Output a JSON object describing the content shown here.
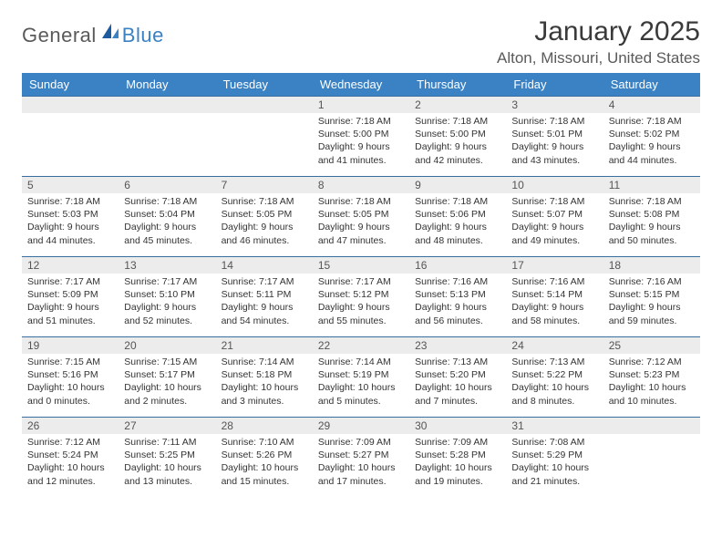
{
  "logo": {
    "general": "General",
    "blue": "Blue"
  },
  "title": "January 2025",
  "location": "Alton, Missouri, United States",
  "colors": {
    "header_bg": "#3b82c4",
    "header_text": "#ffffff",
    "row_divider": "#3b6ea0",
    "daynum_bg": "#ececec",
    "body_text": "#333333",
    "page_bg": "#ffffff"
  },
  "day_headers": [
    "Sunday",
    "Monday",
    "Tuesday",
    "Wednesday",
    "Thursday",
    "Friday",
    "Saturday"
  ],
  "weeks": [
    [
      {
        "n": "",
        "sr": "",
        "ss": "",
        "dl": ""
      },
      {
        "n": "",
        "sr": "",
        "ss": "",
        "dl": ""
      },
      {
        "n": "",
        "sr": "",
        "ss": "",
        "dl": ""
      },
      {
        "n": "1",
        "sr": "Sunrise: 7:18 AM",
        "ss": "Sunset: 5:00 PM",
        "dl": "Daylight: 9 hours and 41 minutes."
      },
      {
        "n": "2",
        "sr": "Sunrise: 7:18 AM",
        "ss": "Sunset: 5:00 PM",
        "dl": "Daylight: 9 hours and 42 minutes."
      },
      {
        "n": "3",
        "sr": "Sunrise: 7:18 AM",
        "ss": "Sunset: 5:01 PM",
        "dl": "Daylight: 9 hours and 43 minutes."
      },
      {
        "n": "4",
        "sr": "Sunrise: 7:18 AM",
        "ss": "Sunset: 5:02 PM",
        "dl": "Daylight: 9 hours and 44 minutes."
      }
    ],
    [
      {
        "n": "5",
        "sr": "Sunrise: 7:18 AM",
        "ss": "Sunset: 5:03 PM",
        "dl": "Daylight: 9 hours and 44 minutes."
      },
      {
        "n": "6",
        "sr": "Sunrise: 7:18 AM",
        "ss": "Sunset: 5:04 PM",
        "dl": "Daylight: 9 hours and 45 minutes."
      },
      {
        "n": "7",
        "sr": "Sunrise: 7:18 AM",
        "ss": "Sunset: 5:05 PM",
        "dl": "Daylight: 9 hours and 46 minutes."
      },
      {
        "n": "8",
        "sr": "Sunrise: 7:18 AM",
        "ss": "Sunset: 5:05 PM",
        "dl": "Daylight: 9 hours and 47 minutes."
      },
      {
        "n": "9",
        "sr": "Sunrise: 7:18 AM",
        "ss": "Sunset: 5:06 PM",
        "dl": "Daylight: 9 hours and 48 minutes."
      },
      {
        "n": "10",
        "sr": "Sunrise: 7:18 AM",
        "ss": "Sunset: 5:07 PM",
        "dl": "Daylight: 9 hours and 49 minutes."
      },
      {
        "n": "11",
        "sr": "Sunrise: 7:18 AM",
        "ss": "Sunset: 5:08 PM",
        "dl": "Daylight: 9 hours and 50 minutes."
      }
    ],
    [
      {
        "n": "12",
        "sr": "Sunrise: 7:17 AM",
        "ss": "Sunset: 5:09 PM",
        "dl": "Daylight: 9 hours and 51 minutes."
      },
      {
        "n": "13",
        "sr": "Sunrise: 7:17 AM",
        "ss": "Sunset: 5:10 PM",
        "dl": "Daylight: 9 hours and 52 minutes."
      },
      {
        "n": "14",
        "sr": "Sunrise: 7:17 AM",
        "ss": "Sunset: 5:11 PM",
        "dl": "Daylight: 9 hours and 54 minutes."
      },
      {
        "n": "15",
        "sr": "Sunrise: 7:17 AM",
        "ss": "Sunset: 5:12 PM",
        "dl": "Daylight: 9 hours and 55 minutes."
      },
      {
        "n": "16",
        "sr": "Sunrise: 7:16 AM",
        "ss": "Sunset: 5:13 PM",
        "dl": "Daylight: 9 hours and 56 minutes."
      },
      {
        "n": "17",
        "sr": "Sunrise: 7:16 AM",
        "ss": "Sunset: 5:14 PM",
        "dl": "Daylight: 9 hours and 58 minutes."
      },
      {
        "n": "18",
        "sr": "Sunrise: 7:16 AM",
        "ss": "Sunset: 5:15 PM",
        "dl": "Daylight: 9 hours and 59 minutes."
      }
    ],
    [
      {
        "n": "19",
        "sr": "Sunrise: 7:15 AM",
        "ss": "Sunset: 5:16 PM",
        "dl": "Daylight: 10 hours and 0 minutes."
      },
      {
        "n": "20",
        "sr": "Sunrise: 7:15 AM",
        "ss": "Sunset: 5:17 PM",
        "dl": "Daylight: 10 hours and 2 minutes."
      },
      {
        "n": "21",
        "sr": "Sunrise: 7:14 AM",
        "ss": "Sunset: 5:18 PM",
        "dl": "Daylight: 10 hours and 3 minutes."
      },
      {
        "n": "22",
        "sr": "Sunrise: 7:14 AM",
        "ss": "Sunset: 5:19 PM",
        "dl": "Daylight: 10 hours and 5 minutes."
      },
      {
        "n": "23",
        "sr": "Sunrise: 7:13 AM",
        "ss": "Sunset: 5:20 PM",
        "dl": "Daylight: 10 hours and 7 minutes."
      },
      {
        "n": "24",
        "sr": "Sunrise: 7:13 AM",
        "ss": "Sunset: 5:22 PM",
        "dl": "Daylight: 10 hours and 8 minutes."
      },
      {
        "n": "25",
        "sr": "Sunrise: 7:12 AM",
        "ss": "Sunset: 5:23 PM",
        "dl": "Daylight: 10 hours and 10 minutes."
      }
    ],
    [
      {
        "n": "26",
        "sr": "Sunrise: 7:12 AM",
        "ss": "Sunset: 5:24 PM",
        "dl": "Daylight: 10 hours and 12 minutes."
      },
      {
        "n": "27",
        "sr": "Sunrise: 7:11 AM",
        "ss": "Sunset: 5:25 PM",
        "dl": "Daylight: 10 hours and 13 minutes."
      },
      {
        "n": "28",
        "sr": "Sunrise: 7:10 AM",
        "ss": "Sunset: 5:26 PM",
        "dl": "Daylight: 10 hours and 15 minutes."
      },
      {
        "n": "29",
        "sr": "Sunrise: 7:09 AM",
        "ss": "Sunset: 5:27 PM",
        "dl": "Daylight: 10 hours and 17 minutes."
      },
      {
        "n": "30",
        "sr": "Sunrise: 7:09 AM",
        "ss": "Sunset: 5:28 PM",
        "dl": "Daylight: 10 hours and 19 minutes."
      },
      {
        "n": "31",
        "sr": "Sunrise: 7:08 AM",
        "ss": "Sunset: 5:29 PM",
        "dl": "Daylight: 10 hours and 21 minutes."
      },
      {
        "n": "",
        "sr": "",
        "ss": "",
        "dl": ""
      }
    ]
  ]
}
